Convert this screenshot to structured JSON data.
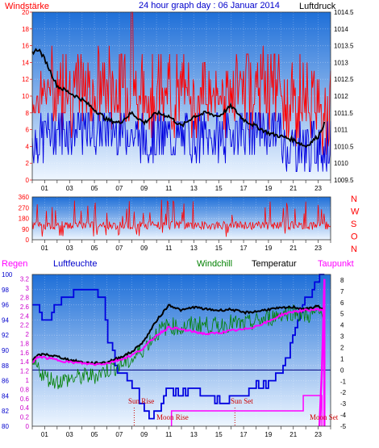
{
  "header": {
    "left": "Windstärke",
    "title": "24 hour graph day : 06 Januar 2014",
    "right": "Luftdruck"
  },
  "colors": {
    "wind": "#ff0000",
    "gust": "#0000e0",
    "pressure": "#000000",
    "temp": "#000000",
    "windchill": "#008000",
    "humidity": "#0000e0",
    "dewpoint": "#ff00ff",
    "rain": "#ff00ff",
    "grad_top": "#1e6fd8",
    "grad_bottom": "#eef6ff"
  },
  "panel2": {
    "dir_letters": [
      "N",
      "W",
      "S",
      "O",
      "N"
    ]
  },
  "panel3": {
    "labels": {
      "rain": "Regen",
      "humidity": "Luftfeuchte",
      "windchill": "Windchill",
      "temp": "Temperatur",
      "dewpoint": "Taupunkt"
    },
    "events": {
      "sunrise": "Sun Rise",
      "sunset": "Sun Set",
      "moonrise": "Moon Rise",
      "moonset": "Moon Set"
    }
  },
  "chart_data": [
    {
      "type": "line",
      "title": "24 hour graph day : 06 Januar 2014",
      "x_ticks": [
        "01",
        "03",
        "05",
        "07",
        "09",
        "11",
        "13",
        "15",
        "17",
        "19",
        "21",
        "23"
      ],
      "y_left": {
        "label": "Windstärke",
        "ticks": [
          0,
          2,
          4,
          6,
          8,
          10,
          12,
          14,
          16,
          18,
          20
        ],
        "ylim": [
          0,
          20
        ]
      },
      "y_right": {
        "label": "Luftdruck",
        "ticks": [
          1009.5,
          1010,
          1010.5,
          1011,
          1011.5,
          1012,
          1012.5,
          1013,
          1013.5,
          1014,
          1014.5
        ],
        "ylim": [
          1009.5,
          1014.5
        ]
      },
      "series": [
        {
          "name": "Luftdruck",
          "axis": "right",
          "x": [
            0,
            0.5,
            1,
            2,
            3,
            4,
            5,
            6,
            7,
            8,
            9,
            10,
            11,
            12,
            13,
            14,
            15,
            16,
            17,
            18,
            19,
            20,
            21,
            22,
            23,
            23.5
          ],
          "values": [
            1013.3,
            1013.4,
            1013.1,
            1012.3,
            1012.1,
            1011.9,
            1011.6,
            1011.3,
            1011.2,
            1011.5,
            1011.2,
            1011.5,
            1011.4,
            1011.1,
            1011.4,
            1011.5,
            1011.4,
            1011.7,
            1011.3,
            1011.1,
            1010.9,
            1010.8,
            1010.7,
            1010.5,
            1010.8,
            1011.2
          ]
        }
      ]
    },
    {
      "type": "line",
      "x_ticks": [
        "01",
        "03",
        "05",
        "07",
        "09",
        "11",
        "13",
        "15",
        "17",
        "19",
        "21",
        "23"
      ],
      "y_left": {
        "ticks": [
          0,
          90,
          180,
          270,
          360
        ],
        "ylim": [
          0,
          360
        ]
      },
      "series": []
    },
    {
      "type": "line",
      "x_ticks": [
        "01",
        "03",
        "05",
        "07",
        "09",
        "11",
        "13",
        "15",
        "17",
        "19",
        "21",
        "23"
      ],
      "y_humidity": {
        "label": "Luftfeuchte",
        "ticks": [
          80,
          82,
          84,
          86,
          88,
          90,
          92,
          94,
          96,
          98,
          100
        ],
        "ylim": [
          80,
          100
        ]
      },
      "y_rain": {
        "label": "Regen",
        "ticks": [
          0,
          0.2,
          0.4,
          0.6,
          0.8,
          1,
          1.2,
          1.4,
          1.6,
          1.8,
          2,
          2.2,
          2.4,
          2.6,
          2.8,
          3,
          3.2
        ],
        "ylim": [
          0,
          3.3
        ]
      },
      "y_temp": {
        "ticks": [
          -5,
          -4,
          -3,
          -2,
          -1,
          0,
          1,
          2,
          3,
          4,
          5,
          6,
          7,
          8
        ],
        "ylim": [
          -5,
          8.5
        ]
      },
      "series": [
        {
          "name": "Temperatur",
          "axis": "temp",
          "x": [
            0,
            0.5,
            1,
            2,
            3,
            4,
            5,
            6,
            7,
            8,
            9,
            10,
            11,
            12,
            13,
            14,
            15,
            16,
            17,
            18,
            19,
            20,
            21,
            22,
            23,
            23.5
          ],
          "values": [
            0.9,
            1.3,
            1.4,
            1.2,
            0.9,
            0.7,
            0.6,
            0.7,
            1.1,
            1.6,
            2.6,
            4.4,
            5.8,
            5.3,
            5.6,
            5.4,
            5.3,
            5.4,
            5.1,
            5.2,
            5.4,
            5.5,
            5.6,
            5.4,
            5.7,
            5.3
          ]
        },
        {
          "name": "Taupunkt",
          "axis": "temp",
          "x": [
            0,
            0.5,
            1,
            2,
            3,
            4,
            5,
            6,
            7,
            8,
            9,
            10,
            11,
            12,
            13,
            14,
            15,
            16,
            17,
            18,
            19,
            20,
            21,
            22,
            23,
            23.5
          ],
          "values": [
            0.6,
            1.2,
            1.1,
            0.9,
            0.7,
            0.6,
            0.5,
            0.6,
            0.9,
            1.3,
            2.0,
            3.1,
            3.8,
            3.6,
            3.4,
            3.2,
            3.3,
            3.5,
            3.6,
            3.9,
            4.3,
            4.9,
            5.2,
            5.3,
            5.4,
            5.3
          ]
        },
        {
          "name": "Windchill",
          "axis": "temp",
          "x": [
            0,
            0.5,
            1,
            2,
            3,
            4,
            5,
            6,
            7,
            8,
            9,
            10,
            11,
            12,
            13,
            14,
            15,
            16,
            17,
            18,
            19,
            20,
            21,
            22,
            23,
            23.5
          ],
          "values": [
            0.5,
            0.2,
            -0.6,
            -1.0,
            -0.8,
            -0.6,
            -0.5,
            0.0,
            0.4,
            0.9,
            2.0,
            3.3,
            4.0,
            3.7,
            4.1,
            4.0,
            3.9,
            4.2,
            4.0,
            4.3,
            4.6,
            5.0,
            5.2,
            4.8,
            5.1,
            4.8
          ]
        },
        {
          "name": "Luftfeuchte",
          "axis": "humidity",
          "x": [
            0,
            0.5,
            1,
            2,
            3,
            4,
            5,
            5.8,
            6,
            7,
            8,
            8.5,
            9,
            9.5,
            10,
            11,
            12,
            13,
            14,
            15,
            16,
            17,
            18,
            19,
            20,
            21,
            22,
            22.5,
            23,
            23.5
          ],
          "values": [
            96,
            95,
            94,
            96,
            97,
            98,
            98,
            96,
            92,
            87,
            86,
            84,
            82,
            80.5,
            82,
            85,
            84,
            85,
            84,
            83,
            84,
            84,
            85,
            86,
            87,
            92,
            97,
            98,
            99,
            100
          ]
        }
      ]
    }
  ]
}
